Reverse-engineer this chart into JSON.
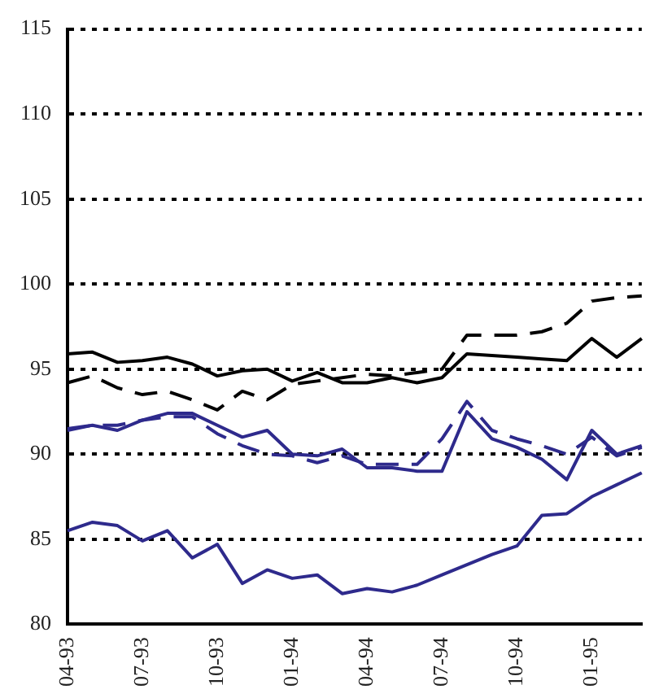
{
  "chart_data": {
    "type": "line",
    "categories": [
      "04-93",
      null,
      null,
      "07-93",
      null,
      null,
      "10-93",
      null,
      null,
      "01-94",
      null,
      null,
      "04-94",
      null,
      null,
      "07-94",
      null,
      null,
      "10-94",
      null,
      null,
      "01-95",
      null,
      null
    ],
    "series": [
      {
        "color": "#000000",
        "line_style": "solid",
        "values": [
          95.9,
          96.0,
          95.4,
          95.5,
          95.7,
          95.3,
          94.6,
          94.9,
          95.0,
          94.3,
          94.8,
          94.2,
          94.2,
          94.5,
          94.2,
          94.5,
          95.9,
          95.8,
          95.7,
          95.6,
          95.5,
          96.8,
          95.7,
          96.8
        ]
      },
      {
        "color": "#000000",
        "line_style": "dashed",
        "values": [
          94.2,
          94.6,
          93.9,
          93.5,
          93.7,
          93.2,
          92.6,
          93.7,
          93.2,
          94.1,
          94.3,
          94.5,
          94.7,
          94.6,
          94.8,
          95.0,
          97.0,
          97.0,
          97.0,
          97.2,
          97.7,
          99.0,
          99.2,
          99.3
        ]
      },
      {
        "color": "#2e2a8c",
        "line_style": "solid",
        "values": [
          91.5,
          91.7,
          91.4,
          92.0,
          92.4,
          92.4,
          91.7,
          91.0,
          91.4,
          90.0,
          89.9,
          90.3,
          89.2,
          89.2,
          89.0,
          89.0,
          92.5,
          90.9,
          90.4,
          89.7,
          88.5,
          91.4,
          90.0,
          90.5
        ]
      },
      {
        "color": "#2e2a8c",
        "line_style": "dashed",
        "values": [
          91.4,
          91.7,
          91.7,
          92.0,
          92.2,
          92.2,
          91.2,
          90.5,
          90.0,
          89.9,
          89.5,
          89.9,
          89.4,
          89.4,
          89.4,
          90.9,
          93.1,
          91.4,
          90.9,
          90.5,
          90.0,
          91.0,
          89.9,
          90.4
        ]
      },
      {
        "color": "#2e2a8c",
        "line_style": "solid",
        "values": [
          85.5,
          86.0,
          85.8,
          84.9,
          85.5,
          83.9,
          84.7,
          82.4,
          83.2,
          82.7,
          82.9,
          81.8,
          82.1,
          81.9,
          82.3,
          82.9,
          83.5,
          84.1,
          84.6,
          86.4,
          86.5,
          87.5,
          88.2,
          88.9
        ]
      }
    ],
    "ylim": [
      80,
      115
    ],
    "yticks": [
      80,
      85,
      90,
      95,
      100,
      105,
      110,
      115
    ],
    "grid": "y",
    "legend": false,
    "marker": "none"
  }
}
